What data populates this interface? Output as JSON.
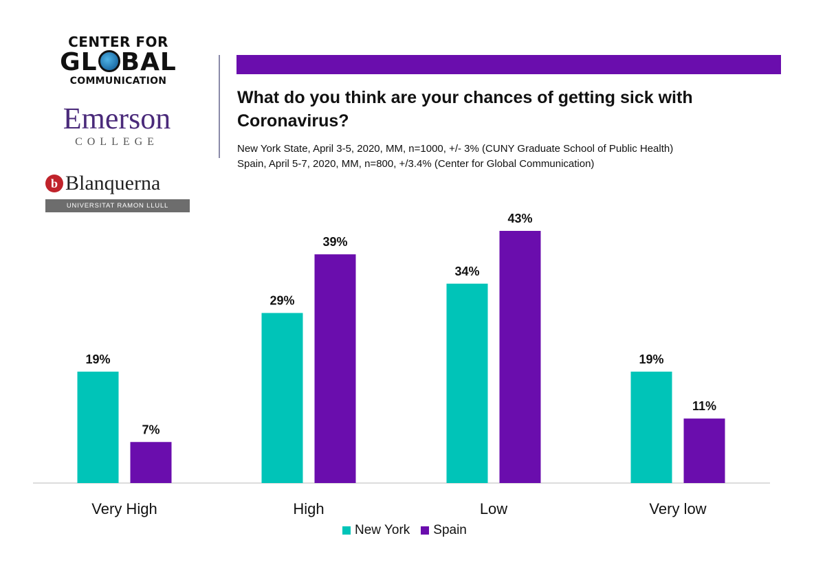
{
  "logos": {
    "cgc_line1": "CENTER FOR",
    "cgc_line2a": "GL",
    "cgc_line2b": "BAL",
    "cgc_line3": "COMMUNICATION",
    "emerson_name": "Emerson",
    "emerson_sub": "COLLEGE",
    "blanquerna_badge": "b",
    "blanquerna_name": "Blanquerna",
    "blanquerna_sub": "UNIVERSITAT RAMON LLULL"
  },
  "colors": {
    "new_york": "#00c4b8",
    "spain": "#6a0dad",
    "topbar": "#6a0dad"
  },
  "chart_data": {
    "type": "bar",
    "title": "What do you think are your chances of getting sick with Coronavirus?",
    "subtitle_lines": [
      "New York State, April 3-5, 2020, MM, n=1000, +/- 3% (CUNY Graduate School of Public Health)",
      "Spain, April 5-7, 2020, MM, n=800, +/3.4% (Center for Global Communication)"
    ],
    "categories": [
      "Very High",
      "High",
      "Low",
      "Very low"
    ],
    "series": [
      {
        "name": "New York",
        "values": [
          19,
          29,
          34,
          19
        ],
        "labels": [
          "19%",
          "29%",
          "34%",
          "19%"
        ]
      },
      {
        "name": "Spain",
        "values": [
          7,
          39,
          43,
          11
        ],
        "labels": [
          "7%",
          "39%",
          "43%",
          "11%"
        ]
      }
    ],
    "ylim": [
      0,
      43
    ],
    "grid": false,
    "legend_position": "bottom"
  }
}
